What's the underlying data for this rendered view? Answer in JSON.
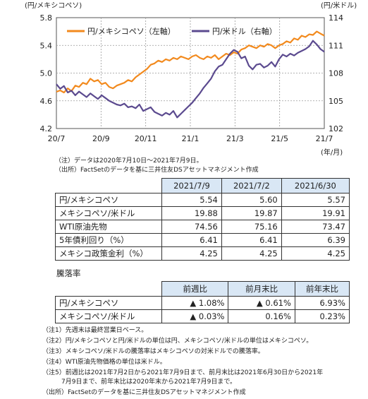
{
  "chart_data": {
    "type": "line",
    "left_axis_label": "(円/メキシコペソ)",
    "right_axis_label": "(円/米ドル)",
    "x_unit_label": "(年/月)",
    "left_ticks": [
      "5.8",
      "5.4",
      "5.0",
      "4.6",
      "4.2"
    ],
    "right_ticks": [
      "114",
      "111",
      "108",
      "105",
      "102"
    ],
    "x_ticks": [
      "20/7",
      "20/9",
      "20/11",
      "21/1",
      "21/3",
      "21/5",
      "21/7"
    ],
    "ylim_left": [
      4.2,
      5.8
    ],
    "ylim_right": [
      102,
      114
    ],
    "series": [
      {
        "name": "円/メキシコペソ（左軸）",
        "axis": "left",
        "color": "#f28a1e",
        "values": [
          4.73,
          4.75,
          4.72,
          4.78,
          4.74,
          4.82,
          4.8,
          4.86,
          4.84,
          4.92,
          4.88,
          4.9,
          4.84,
          4.86,
          4.8,
          4.78,
          4.82,
          4.84,
          4.86,
          4.9,
          4.88,
          4.94,
          4.98,
          5.02,
          5.06,
          5.12,
          5.14,
          5.18,
          5.16,
          5.2,
          5.18,
          5.22,
          5.2,
          5.24,
          5.22,
          5.2,
          5.24,
          5.26,
          5.22,
          5.2,
          5.24,
          5.22,
          5.26,
          5.2,
          5.24,
          5.28,
          5.26,
          5.3,
          5.28,
          5.34,
          5.36,
          5.4,
          5.38,
          5.36,
          5.4,
          5.38,
          5.42,
          5.4,
          5.36,
          5.4,
          5.42,
          5.46,
          5.44,
          5.5,
          5.48,
          5.54,
          5.52,
          5.56,
          5.55,
          5.6,
          5.57,
          5.54
        ]
      },
      {
        "name": "円/米ドル（右軸）",
        "axis": "right",
        "color": "#5b4a8f",
        "values": [
          106.8,
          106.3,
          106.6,
          105.9,
          106.1,
          105.6,
          106.0,
          105.7,
          105.4,
          105.8,
          105.5,
          105.2,
          105.6,
          105.3,
          105.0,
          104.8,
          104.6,
          104.5,
          104.7,
          104.3,
          104.4,
          104.2,
          104.6,
          103.9,
          104.1,
          104.3,
          103.8,
          103.6,
          103.4,
          103.7,
          103.5,
          103.9,
          103.2,
          103.6,
          104.0,
          104.4,
          104.8,
          105.3,
          105.8,
          106.4,
          106.9,
          107.4,
          108.2,
          108.7,
          108.9,
          109.5,
          110.1,
          110.5,
          110.3,
          109.6,
          109.8,
          108.8,
          108.4,
          108.9,
          109.0,
          108.6,
          108.8,
          109.2,
          108.7,
          109.5,
          110.0,
          109.8,
          110.1,
          109.9,
          110.2,
          110.4,
          110.6,
          110.9,
          111.5,
          111.1,
          110.6,
          110.3
        ]
      }
    ],
    "notes": [
      "（注）データは2020年7月10日～2021年7月9日。",
      "（出所）FactSetのデータを基に三井住友DSアセットマネジメント作成"
    ]
  },
  "table1": {
    "columns": [
      "2021/7/9",
      "2021/7/2",
      "2021/6/30"
    ],
    "rows": [
      {
        "label": "円/メキシコペソ",
        "values": [
          "5.54",
          "5.60",
          "5.57"
        ]
      },
      {
        "label": "メキシコペソ/米ドル",
        "values": [
          "19.88",
          "19.87",
          "19.91"
        ]
      },
      {
        "label": "WTI原油先物",
        "values": [
          "74.56",
          "75.16",
          "73.47"
        ]
      },
      {
        "label": "5年債利回り（%）",
        "values": [
          "6.41",
          "6.41",
          "6.39"
        ]
      },
      {
        "label": "メキシコ政策金利（%）",
        "values": [
          "4.25",
          "4.25",
          "4.25"
        ]
      }
    ]
  },
  "table2": {
    "title": "騰落率",
    "columns": [
      "前週比",
      "前月末比",
      "前年末比"
    ],
    "rows": [
      {
        "label": "円/メキシコペソ",
        "values": [
          "▲ 1.08%",
          "▲ 0.61%",
          "6.93%"
        ]
      },
      {
        "label": "メキシコペソ/米ドル",
        "values": [
          "▲ 0.03%",
          "0.16%",
          "0.23%"
        ]
      }
    ]
  },
  "footnotes": [
    "（注1）先週末は最終営業日ベース。",
    "（注2）円/メキシコペソと円/米ドルの単位は円、メキシコペソ/米ドルの単位はメキシコペソ。",
    "（注3）メキシコペソ/米ドルの騰落率はメキシコペソの対米ドルでの騰落率。",
    "（注4）WTI原油先物価格の単位は米ドル。",
    "（注5）前週比は2021年7月2日から2021年7月9日まで、前月末比は2021年6月30日から2021年",
    "　　　7月9日まで、前年末比は2020年末から2021年7月9日まで。",
    "（出所）FactSetのデータを基に三井住友DSアセットマネジメント作成"
  ]
}
